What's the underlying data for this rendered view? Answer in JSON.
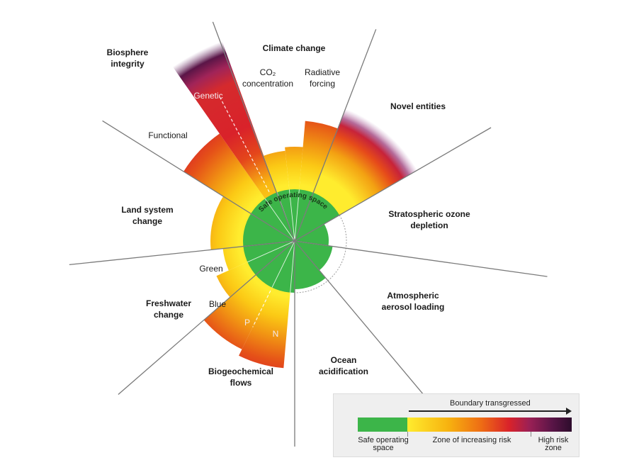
{
  "labels": {
    "climate_change": "Climate change",
    "co2": "CO₂",
    "concentration": "concentration",
    "radiative": "Radiative",
    "forcing": "forcing",
    "novel_entities": "Novel entities",
    "ozone_1": "Stratospheric ozone",
    "ozone_2": "depletion",
    "aerosol_1": "Atmospheric",
    "aerosol_2": "aerosol loading",
    "ocean_1": "Ocean",
    "ocean_2": "acidification",
    "biogeo_1": "Biogeochemical",
    "biogeo_2": "flows",
    "p": "P",
    "n": "N",
    "freshwater_1": "Freshwater",
    "freshwater_2": "change",
    "green": "Green",
    "blue": "Blue",
    "land_1": "Land system",
    "land_2": "change",
    "functional": "Functional",
    "biosphere_1": "Biosphere",
    "biosphere_2": "integrity",
    "genetic": "Genetic",
    "safe_space": "Safe operating space"
  },
  "legend": {
    "title": "Boundary transgressed",
    "safe_1": "Safe operating",
    "safe_2": "space",
    "risk": "Zone of increasing risk",
    "high_1": "High risk",
    "high_2": "zone"
  },
  "colors": {
    "safe": "#3cb549",
    "yellow": "#ffec2e",
    "orange": "#ee6c14",
    "red": "#d9222a",
    "purple": "#5a1547",
    "dark": "#2d0c2c"
  }
}
